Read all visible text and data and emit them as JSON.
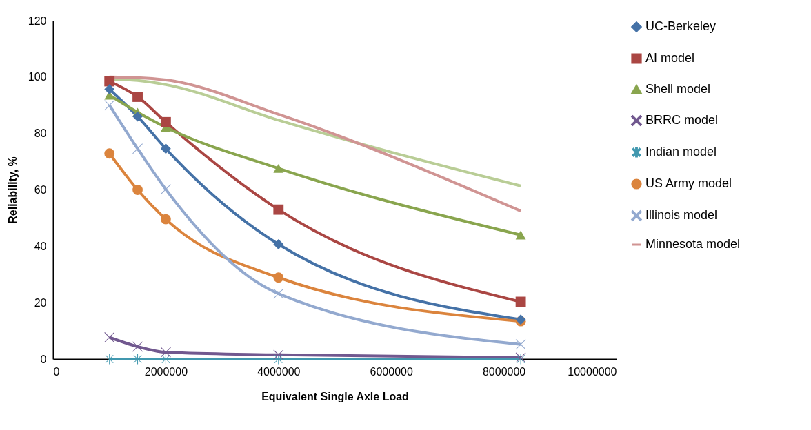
{
  "chart_data": {
    "type": "line",
    "xlabel": "Equivalent Single Axle Load",
    "ylabel": "Reliability, %",
    "x": [
      1000000,
      1500000,
      2000000,
      4000000,
      8300000
    ],
    "series": [
      {
        "name": "UC-Berkeley",
        "color": "#4572a7",
        "marker": "diamond",
        "values": [
          95.7,
          86,
          74.6,
          40.7,
          14
        ]
      },
      {
        "name": "AI model",
        "color": "#aa4643",
        "marker": "square",
        "values": [
          98.5,
          93,
          84,
          53,
          20.3
        ]
      },
      {
        "name": "Shell model",
        "color": "#89a54e",
        "marker": "triangle",
        "values": [
          93.6,
          87.5,
          82.2,
          67.6,
          44
        ]
      },
      {
        "name": "BRRC model",
        "color": "#71588f",
        "marker": "cross",
        "values": [
          7.7,
          4.4,
          2.4,
          1.5,
          0.5
        ]
      },
      {
        "name": "Indian model",
        "color": "#4198af",
        "marker": "star",
        "values": [
          0,
          0,
          0,
          0,
          0
        ]
      },
      {
        "name": "US Army model",
        "color": "#db843d",
        "marker": "circle",
        "values": [
          72.9,
          60,
          49.6,
          28.9,
          13.4
        ]
      },
      {
        "name": "Illinois model",
        "color": "#93a9cf",
        "marker": "cross",
        "values": [
          90,
          74.6,
          60.2,
          23.2,
          5.2
        ]
      },
      {
        "name": "Minnesota model",
        "color": "#d09493",
        "marker": "none",
        "values": [
          100,
          99.8,
          99,
          86.8,
          52.5
        ]
      },
      {
        "color": "#b9cd96",
        "marker": "none",
        "values": [
          99.3,
          98.8,
          97.3,
          84.7,
          61.4
        ]
      }
    ],
    "xlim": [
      0,
      10000000
    ],
    "xticks": [
      0,
      2000000,
      4000000,
      6000000,
      8000000,
      10000000
    ],
    "ylim": [
      0,
      120
    ],
    "yticks": [
      0,
      20,
      40,
      60,
      80,
      100,
      120
    ],
    "grid": false,
    "legend": "right"
  }
}
